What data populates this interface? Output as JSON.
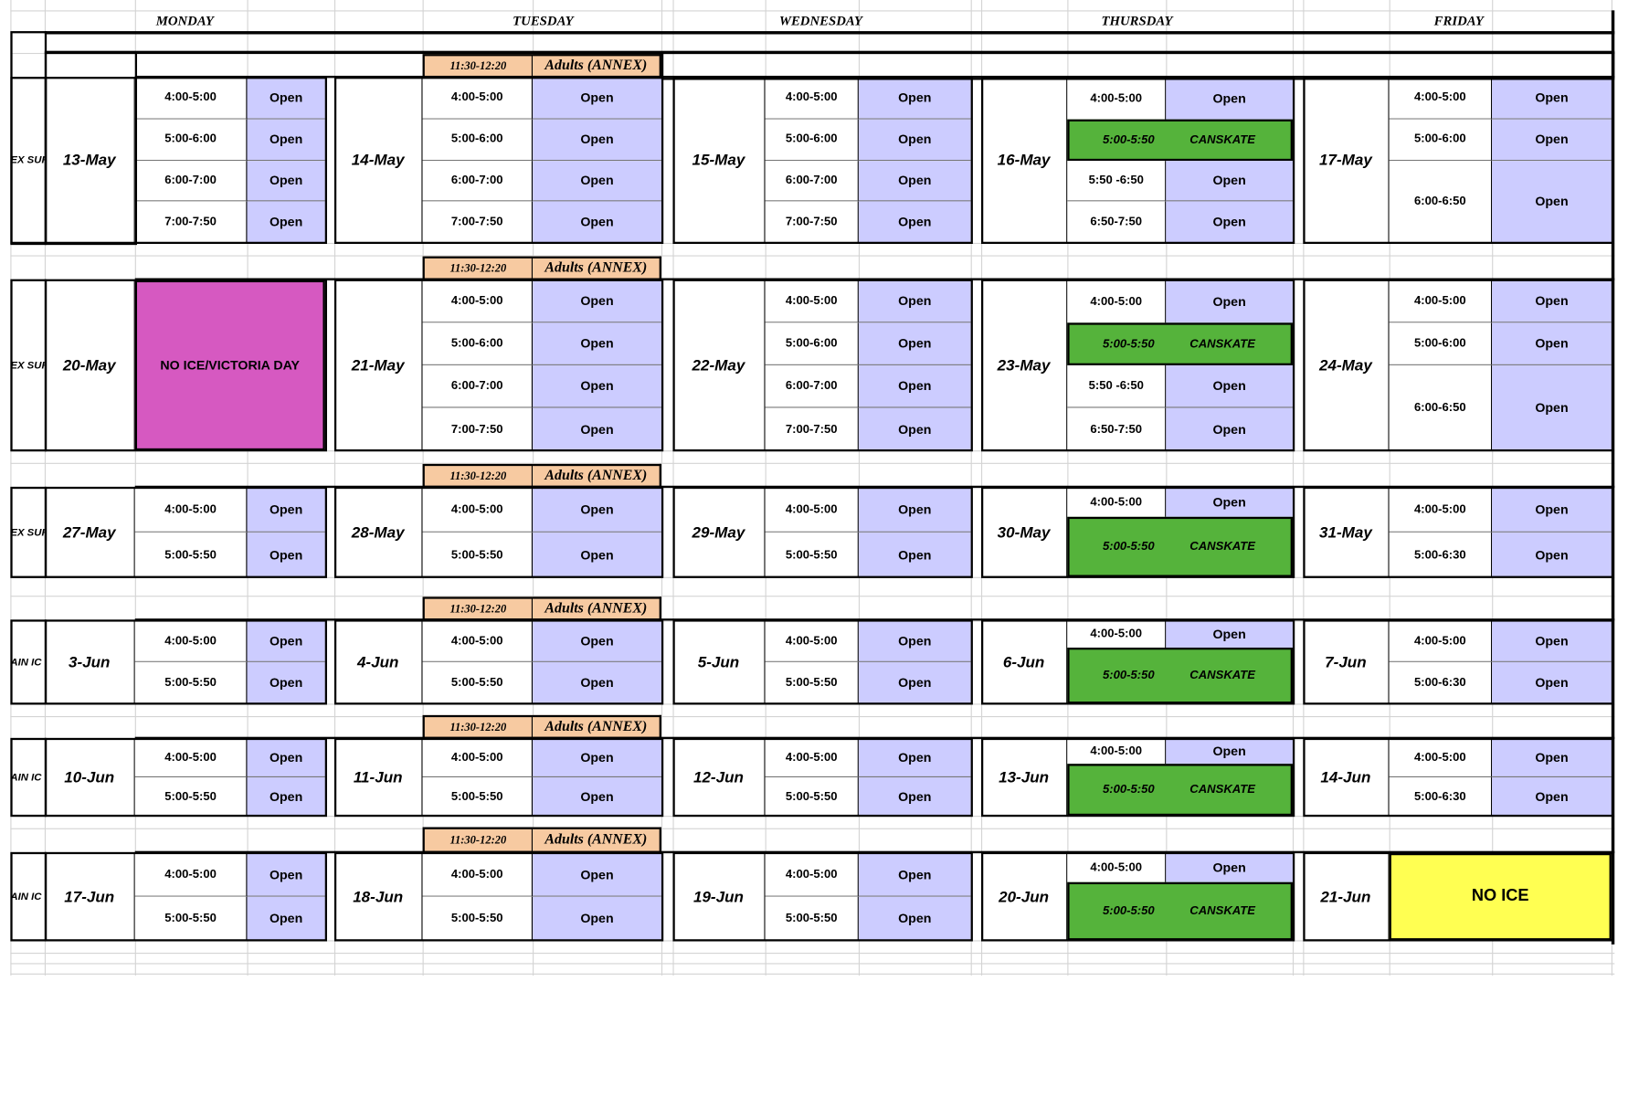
{
  "days": [
    "MONDAY",
    "TUESDAY",
    "WEDNESDAY",
    "THURSDAY",
    "FRIDAY"
  ],
  "weeks": [
    {
      "side": "EX SUR",
      "oa_time": "11:30-12:20",
      "oa_name": "Adults (ANNEX)",
      "mon": {
        "date": "13-May",
        "slots": [
          [
            "4:00-5:00",
            "Open"
          ],
          [
            "5:00-6:00",
            "Open"
          ],
          [
            "6:00-7:00",
            "Open"
          ],
          [
            "7:00-7:50",
            "Open"
          ]
        ]
      },
      "tue": {
        "date": "14-May",
        "slots": [
          [
            "4:00-5:00",
            "Open"
          ],
          [
            "5:00-6:00",
            "Open"
          ],
          [
            "6:00-7:00",
            "Open"
          ],
          [
            "7:00-7:50",
            "Open"
          ]
        ]
      },
      "wed": {
        "date": "15-May",
        "slots": [
          [
            "4:00-5:00",
            "Open"
          ],
          [
            "5:00-6:00",
            "Open"
          ],
          [
            "6:00-7:00",
            "Open"
          ],
          [
            "7:00-7:50",
            "Open"
          ]
        ]
      },
      "thu": {
        "date": "16-May",
        "slots": [
          [
            "4:00-5:00",
            "Open"
          ],
          [
            "5:50 -6:50",
            "Open"
          ],
          [
            "6:50-7:50",
            "Open"
          ]
        ],
        "canskate_time": "5:00-5:50",
        "canskate_label": "CANSKATE"
      },
      "fri": {
        "date": "17-May",
        "slots": [
          [
            "4:00-5:00",
            "Open"
          ],
          [
            "5:00-6:00",
            "Open"
          ],
          [
            "6:00-6:50",
            "Open"
          ]
        ]
      }
    },
    {
      "side": "EX SUR",
      "oa_time": "11:30-12:20",
      "oa_name": "Adults (ANNEX)",
      "mon": {
        "date": "20-May",
        "closed": "NO ICE/VICTORIA DAY"
      },
      "tue": {
        "date": "21-May",
        "slots": [
          [
            "4:00-5:00",
            "Open"
          ],
          [
            "5:00-6:00",
            "Open"
          ],
          [
            "6:00-7:00",
            "Open"
          ],
          [
            "7:00-7:50",
            "Open"
          ]
        ]
      },
      "wed": {
        "date": "22-May",
        "slots": [
          [
            "4:00-5:00",
            "Open"
          ],
          [
            "5:00-6:00",
            "Open"
          ],
          [
            "6:00-7:00",
            "Open"
          ],
          [
            "7:00-7:50",
            "Open"
          ]
        ]
      },
      "thu": {
        "date": "23-May",
        "slots": [
          [
            "4:00-5:00",
            "Open"
          ],
          [
            "5:50 -6:50",
            "Open"
          ],
          [
            "6:50-7:50",
            "Open"
          ]
        ],
        "canskate_time": "5:00-5:50",
        "canskate_label": "CANSKATE"
      },
      "fri": {
        "date": "24-May",
        "slots": [
          [
            "4:00-5:00",
            "Open"
          ],
          [
            "5:00-6:00",
            "Open"
          ],
          [
            "6:00-6:50",
            "Open"
          ]
        ]
      }
    },
    {
      "side": "EX SUR",
      "oa_time": "11:30-12:20",
      "oa_name": "Adults (ANNEX)",
      "mon": {
        "date": "27-May",
        "slots": [
          [
            "4:00-5:00",
            "Open"
          ],
          [
            "5:00-5:50",
            "Open"
          ]
        ]
      },
      "tue": {
        "date": "28-May",
        "slots": [
          [
            "4:00-5:00",
            "Open"
          ],
          [
            "5:00-5:50",
            "Open"
          ]
        ]
      },
      "wed": {
        "date": "29-May",
        "slots": [
          [
            "4:00-5:00",
            "Open"
          ],
          [
            "5:00-5:50",
            "Open"
          ]
        ]
      },
      "thu": {
        "date": "30-May",
        "slots": [
          [
            "4:00-5:00",
            "Open"
          ]
        ],
        "canskate_time": "5:00-5:50",
        "canskate_label": "CANSKATE"
      },
      "fri": {
        "date": "31-May",
        "slots": [
          [
            "4:00-5:00",
            "Open"
          ],
          [
            "5:00-6:30",
            "Open"
          ]
        ]
      }
    },
    {
      "side": "AIN IC",
      "oa_time": "11:30-12:20",
      "oa_name": "Adults (ANNEX)",
      "mon": {
        "date": "3-Jun",
        "slots": [
          [
            "4:00-5:00",
            "Open"
          ],
          [
            "5:00-5:50",
            "Open"
          ]
        ]
      },
      "tue": {
        "date": "4-Jun",
        "slots": [
          [
            "4:00-5:00",
            "Open"
          ],
          [
            "5:00-5:50",
            "Open"
          ]
        ]
      },
      "wed": {
        "date": "5-Jun",
        "slots": [
          [
            "4:00-5:00",
            "Open"
          ],
          [
            "5:00-5:50",
            "Open"
          ]
        ]
      },
      "thu": {
        "date": "6-Jun",
        "slots": [
          [
            "4:00-5:00",
            "Open"
          ]
        ],
        "canskate_time": "5:00-5:50",
        "canskate_label": "CANSKATE"
      },
      "fri": {
        "date": "7-Jun",
        "slots": [
          [
            "4:00-5:00",
            "Open"
          ],
          [
            "5:00-6:30",
            "Open"
          ]
        ]
      }
    },
    {
      "side": "AIN IC",
      "oa_time": "11:30-12:20",
      "oa_name": "Adults (ANNEX)",
      "mon": {
        "date": "10-Jun",
        "slots": [
          [
            "4:00-5:00",
            "Open"
          ],
          [
            "5:00-5:50",
            "Open"
          ]
        ]
      },
      "tue": {
        "date": "11-Jun",
        "slots": [
          [
            "4:00-5:00",
            "Open"
          ],
          [
            "5:00-5:50",
            "Open"
          ]
        ]
      },
      "wed": {
        "date": "12-Jun",
        "slots": [
          [
            "4:00-5:00",
            "Open"
          ],
          [
            "5:00-5:50",
            "Open"
          ]
        ]
      },
      "thu": {
        "date": "13-Jun",
        "slots": [
          [
            "4:00-5:00",
            "Open"
          ]
        ],
        "canskate_time": "5:00-5:50",
        "canskate_label": "CANSKATE"
      },
      "fri": {
        "date": "14-Jun",
        "slots": [
          [
            "4:00-5:00",
            "Open"
          ],
          [
            "5:00-6:30",
            "Open"
          ]
        ]
      }
    },
    {
      "side": "AIN IC",
      "oa_time": "11:30-12:20",
      "oa_name": "Adults (ANNEX)",
      "mon": {
        "date": "17-Jun",
        "slots": [
          [
            "4:00-5:00",
            "Open"
          ],
          [
            "5:00-5:50",
            "Open"
          ]
        ]
      },
      "tue": {
        "date": "18-Jun",
        "slots": [
          [
            "4:00-5:00",
            "Open"
          ],
          [
            "5:00-5:50",
            "Open"
          ]
        ]
      },
      "wed": {
        "date": "19-Jun",
        "slots": [
          [
            "4:00-5:00",
            "Open"
          ],
          [
            "5:00-5:50",
            "Open"
          ]
        ]
      },
      "thu": {
        "date": "20-Jun",
        "slots": [
          [
            "4:00-5:00",
            "Open"
          ]
        ],
        "canskate_time": "5:00-5:50",
        "canskate_label": "CANSKATE"
      },
      "fri": {
        "date": "21-Jun",
        "closed": "NO ICE"
      }
    }
  ]
}
